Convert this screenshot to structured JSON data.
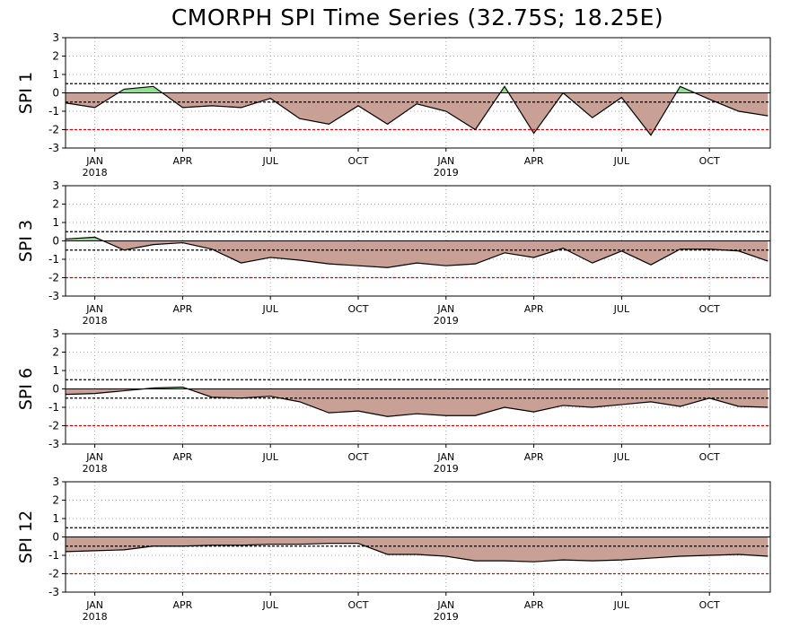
{
  "title": "CMORPH SPI Time Series (32.75S; 18.25E)",
  "colors": {
    "positive_fill": "#90e090",
    "negative_fill": "#c9a096",
    "line": "#000000",
    "zero_line": "#000000",
    "threshold_black": "#000000",
    "threshold_red": "#cc0000",
    "grid": "#aaaaaa"
  },
  "x_ticks": [
    {
      "label": "JAN",
      "year": "2018",
      "date": "2018-01"
    },
    {
      "label": "APR",
      "year": "",
      "date": "2018-04"
    },
    {
      "label": "JUL",
      "year": "",
      "date": "2018-07"
    },
    {
      "label": "OCT",
      "year": "",
      "date": "2018-10"
    },
    {
      "label": "JAN",
      "year": "2019",
      "date": "2019-01"
    },
    {
      "label": "APR",
      "year": "",
      "date": "2019-04"
    },
    {
      "label": "JUL",
      "year": "",
      "date": "2019-07"
    },
    {
      "label": "OCT",
      "year": "",
      "date": "2019-10"
    }
  ],
  "chart_data": [
    {
      "type": "area",
      "ylabel": "SPI 1",
      "ylim": [
        -3,
        3
      ],
      "yticks": [
        "3",
        "2",
        "1",
        "0",
        "-1",
        "-2",
        "-3"
      ],
      "thresholds": [
        0.5,
        -0.5,
        -2
      ],
      "grid": true,
      "x": [
        "2017-12",
        "2018-01",
        "2018-02",
        "2018-03",
        "2018-04",
        "2018-05",
        "2018-06",
        "2018-07",
        "2018-08",
        "2018-09",
        "2018-10",
        "2018-11",
        "2018-12",
        "2019-01",
        "2019-02",
        "2019-03",
        "2019-04",
        "2019-05",
        "2019-06",
        "2019-07",
        "2019-08",
        "2019-09",
        "2019-10",
        "2019-11",
        "2019-12"
      ],
      "values": [
        -0.55,
        -0.8,
        0.2,
        0.35,
        -0.8,
        -0.7,
        -0.8,
        -0.3,
        -1.4,
        -1.7,
        -0.7,
        -1.7,
        -0.6,
        -1.0,
        -2.0,
        0.35,
        -2.2,
        0.0,
        -1.35,
        -0.25,
        -2.3,
        0.35,
        -0.35,
        -1.0,
        -1.25
      ]
    },
    {
      "type": "area",
      "ylabel": "SPI 3",
      "ylim": [
        -3,
        3
      ],
      "yticks": [
        "3",
        "2",
        "1",
        "0",
        "-1",
        "-2",
        "-3"
      ],
      "thresholds": [
        0.5,
        -0.5,
        -2
      ],
      "grid": true,
      "x": [
        "2017-12",
        "2018-01",
        "2018-02",
        "2018-03",
        "2018-04",
        "2018-05",
        "2018-06",
        "2018-07",
        "2018-08",
        "2018-09",
        "2018-10",
        "2018-11",
        "2018-12",
        "2019-01",
        "2019-02",
        "2019-03",
        "2019-04",
        "2019-05",
        "2019-06",
        "2019-07",
        "2019-08",
        "2019-09",
        "2019-10",
        "2019-11",
        "2019-12"
      ],
      "values": [
        0.1,
        0.2,
        -0.5,
        -0.2,
        -0.1,
        -0.45,
        -1.2,
        -0.9,
        -1.05,
        -1.25,
        -1.35,
        -1.45,
        -1.2,
        -1.35,
        -1.25,
        -0.65,
        -0.9,
        -0.4,
        -1.2,
        -0.55,
        -1.3,
        -0.45,
        -0.45,
        -0.55,
        -1.1
      ]
    },
    {
      "type": "area",
      "ylabel": "SPI 6",
      "ylim": [
        -3,
        3
      ],
      "yticks": [
        "3",
        "2",
        "1",
        "0",
        "-1",
        "-2",
        "-3"
      ],
      "thresholds": [
        0.5,
        -0.5,
        -2
      ],
      "grid": true,
      "x": [
        "2017-12",
        "2018-01",
        "2018-02",
        "2018-03",
        "2018-04",
        "2018-05",
        "2018-06",
        "2018-07",
        "2018-08",
        "2018-09",
        "2018-10",
        "2018-11",
        "2018-12",
        "2019-01",
        "2019-02",
        "2019-03",
        "2019-04",
        "2019-05",
        "2019-06",
        "2019-07",
        "2019-08",
        "2019-09",
        "2019-10",
        "2019-11",
        "2019-12"
      ],
      "values": [
        -0.3,
        -0.25,
        -0.1,
        0.05,
        0.1,
        -0.45,
        -0.5,
        -0.4,
        -0.7,
        -1.3,
        -1.2,
        -1.5,
        -1.35,
        -1.45,
        -1.45,
        -1.0,
        -1.25,
        -0.9,
        -1.0,
        -0.85,
        -0.7,
        -0.95,
        -0.5,
        -0.95,
        -1.0
      ]
    },
    {
      "type": "area",
      "ylabel": "SPI 12",
      "ylim": [
        -3,
        3
      ],
      "yticks": [
        "3",
        "2",
        "1",
        "0",
        "-1",
        "-2",
        "-3"
      ],
      "thresholds": [
        0.5,
        -0.5,
        -2
      ],
      "grid": true,
      "x": [
        "2017-12",
        "2018-01",
        "2018-02",
        "2018-03",
        "2018-04",
        "2018-05",
        "2018-06",
        "2018-07",
        "2018-08",
        "2018-09",
        "2018-10",
        "2018-11",
        "2018-12",
        "2019-01",
        "2019-02",
        "2019-03",
        "2019-04",
        "2019-05",
        "2019-06",
        "2019-07",
        "2019-08",
        "2019-09",
        "2019-10",
        "2019-11",
        "2019-12"
      ],
      "values": [
        -0.8,
        -0.75,
        -0.7,
        -0.5,
        -0.5,
        -0.45,
        -0.45,
        -0.4,
        -0.4,
        -0.35,
        -0.35,
        -0.95,
        -0.95,
        -1.05,
        -1.3,
        -1.3,
        -1.35,
        -1.25,
        -1.3,
        -1.25,
        -1.15,
        -1.05,
        -1.0,
        -0.95,
        -1.05
      ]
    }
  ]
}
